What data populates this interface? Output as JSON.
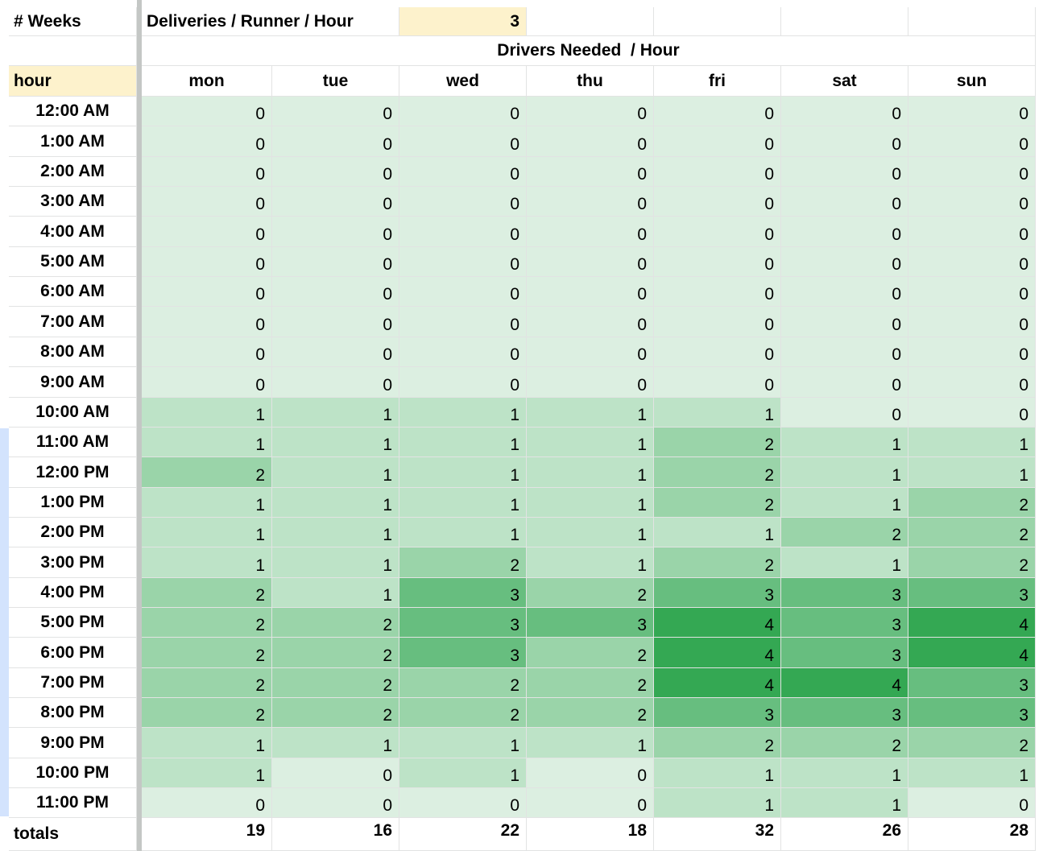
{
  "header_row": {
    "weeks_label": "# Weeks",
    "deliveries_label": "Deliveries / Runner / Hour",
    "deliveries_value": "3"
  },
  "section_title": "Drivers Needed  / Hour",
  "hour_label": "hour",
  "days": [
    "mon",
    "tue",
    "wed",
    "thu",
    "fri",
    "sat",
    "sun"
  ],
  "hours": [
    "12:00 AM",
    "1:00 AM",
    "2:00 AM",
    "3:00 AM",
    "4:00 AM",
    "5:00 AM",
    "6:00 AM",
    "7:00 AM",
    "8:00 AM",
    "9:00 AM",
    "10:00 AM",
    "11:00 AM",
    "12:00 PM",
    "1:00 PM",
    "2:00 PM",
    "3:00 PM",
    "4:00 PM",
    "5:00 PM",
    "6:00 PM",
    "7:00 PM",
    "8:00 PM",
    "9:00 PM",
    "10:00 PM",
    "11:00 PM"
  ],
  "values": [
    [
      0,
      0,
      0,
      0,
      0,
      0,
      0
    ],
    [
      0,
      0,
      0,
      0,
      0,
      0,
      0
    ],
    [
      0,
      0,
      0,
      0,
      0,
      0,
      0
    ],
    [
      0,
      0,
      0,
      0,
      0,
      0,
      0
    ],
    [
      0,
      0,
      0,
      0,
      0,
      0,
      0
    ],
    [
      0,
      0,
      0,
      0,
      0,
      0,
      0
    ],
    [
      0,
      0,
      0,
      0,
      0,
      0,
      0
    ],
    [
      0,
      0,
      0,
      0,
      0,
      0,
      0
    ],
    [
      0,
      0,
      0,
      0,
      0,
      0,
      0
    ],
    [
      0,
      0,
      0,
      0,
      0,
      0,
      0
    ],
    [
      1,
      1,
      1,
      1,
      1,
      0,
      0
    ],
    [
      1,
      1,
      1,
      1,
      2,
      1,
      1
    ],
    [
      2,
      1,
      1,
      1,
      2,
      1,
      1
    ],
    [
      1,
      1,
      1,
      1,
      2,
      1,
      2
    ],
    [
      1,
      1,
      1,
      1,
      1,
      2,
      2
    ],
    [
      1,
      1,
      2,
      1,
      2,
      1,
      2
    ],
    [
      2,
      1,
      3,
      2,
      3,
      3,
      3
    ],
    [
      2,
      2,
      3,
      3,
      4,
      3,
      4
    ],
    [
      2,
      2,
      3,
      2,
      4,
      3,
      4
    ],
    [
      2,
      2,
      2,
      2,
      4,
      4,
      3
    ],
    [
      2,
      2,
      2,
      2,
      3,
      3,
      3
    ],
    [
      1,
      1,
      1,
      1,
      2,
      2,
      2
    ],
    [
      1,
      0,
      1,
      0,
      1,
      1,
      1
    ],
    [
      0,
      0,
      0,
      0,
      1,
      1,
      0
    ]
  ],
  "shades": [
    [
      "e",
      2,
      2,
      2,
      2,
      2,
      2,
      2
    ],
    [
      2,
      2,
      2,
      2,
      2,
      2,
      2
    ]
  ],
  "totals_label": "totals",
  "totals": [
    "19",
    "16",
    "22",
    "18",
    "32",
    "26",
    "28"
  ],
  "colors": {
    "highlight": "#fdf2cc",
    "level_1": "#dcefe1",
    "level_2": "#bde3c7",
    "level_3": "#9ad4a9",
    "level_4": "#67be7f",
    "level_5": "#34a853"
  }
}
